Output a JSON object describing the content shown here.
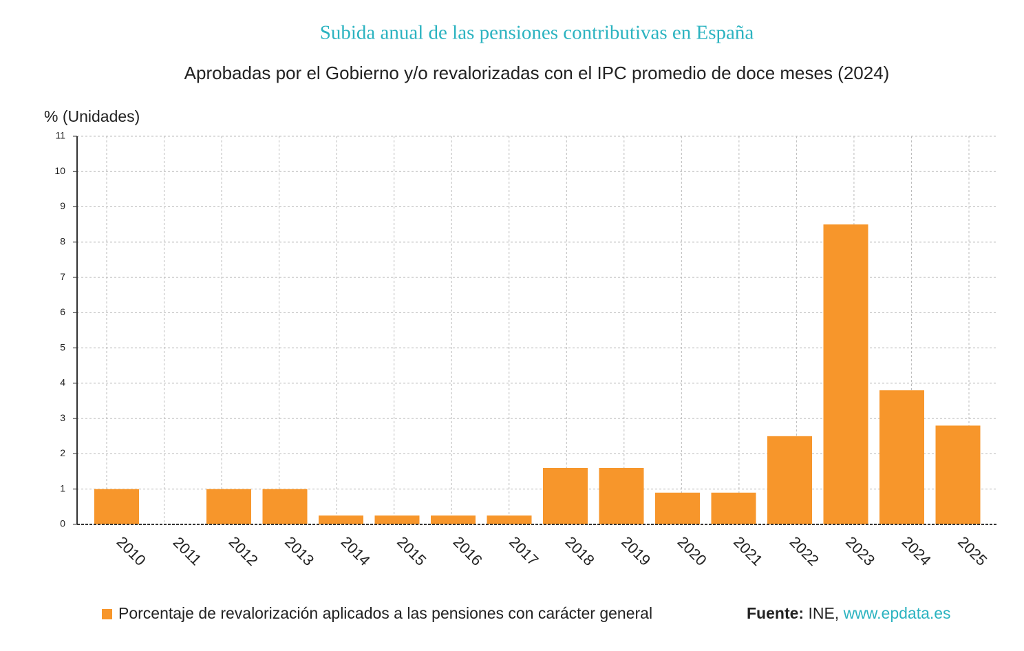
{
  "chart_data": {
    "type": "bar",
    "title": "Subida anual de las pensiones contributivas en España",
    "subtitle": "Aprobadas por el Gobierno y/o revalorizadas con el IPC promedio de doce meses (2024)",
    "y_axis_label": "% (Unidades)",
    "categories": [
      "2010",
      "2011",
      "2012",
      "2013",
      "2014",
      "2015",
      "2016",
      "2017",
      "2018",
      "2019",
      "2020",
      "2021",
      "2022",
      "2023",
      "2024",
      "2025"
    ],
    "series": [
      {
        "name": "Porcentaje de revalorización aplicados a las pensiones con carácter general",
        "color": "#f7962b",
        "values": [
          1,
          0,
          1,
          1,
          0.25,
          0.25,
          0.25,
          0.25,
          1.6,
          1.6,
          0.9,
          0.9,
          2.5,
          8.5,
          3.8,
          2.8
        ]
      }
    ],
    "ylim": [
      0,
      11
    ],
    "yticks": [
      0,
      1,
      2,
      3,
      4,
      5,
      6,
      7,
      8,
      9,
      10,
      11
    ],
    "grid": true,
    "source": {
      "label": "Fuente:",
      "text": "INE,",
      "link": "www.epdata.es"
    }
  }
}
